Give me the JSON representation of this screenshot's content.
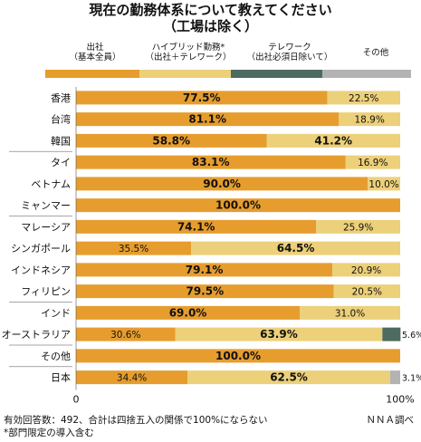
{
  "header": {
    "title": "現在の勤務体系について教えてください",
    "subtitle": "（工場は除く）"
  },
  "legend": [
    {
      "line1": "出社",
      "line2": "（基本全員）",
      "color": "#e69d2e"
    },
    {
      "line1": "ハイブリッド勤務*",
      "line2": "（出社＋テレワーク）",
      "color": "#ecd07a"
    },
    {
      "line1": "テレワーク",
      "line2": "（出社必須日除いて）",
      "color": "#4d6b60"
    },
    {
      "line1": "その他",
      "line2": "",
      "color": "#b3b3b3"
    }
  ],
  "chart_data": {
    "type": "bar",
    "orientation": "horizontal",
    "stacked": true,
    "categories": [
      "香港",
      "台湾",
      "韓国",
      "タイ",
      "ベトナム",
      "ミャンマー",
      "マレーシア",
      "シンガポール",
      "インドネシア",
      "フィリピン",
      "インド",
      "オーストラリア",
      "その他",
      "日本"
    ],
    "series": [
      {
        "name": "出社（基本全員）",
        "color": "#e69d2e",
        "values": [
          77.5,
          81.1,
          58.8,
          83.1,
          90.0,
          100.0,
          74.1,
          35.5,
          79.1,
          79.5,
          69.0,
          30.6,
          100.0,
          34.4
        ]
      },
      {
        "name": "ハイブリッド勤務*（出社＋テレワーク）",
        "color": "#ecd07a",
        "values": [
          22.5,
          18.9,
          41.2,
          16.9,
          10.0,
          0,
          25.9,
          64.5,
          20.9,
          20.5,
          31.0,
          63.9,
          0,
          62.5
        ]
      },
      {
        "name": "テレワーク（出社必須日除いて）",
        "color": "#4d6b60",
        "values": [
          0,
          0,
          0,
          0,
          0,
          0,
          0,
          0,
          0,
          0,
          0,
          5.6,
          0,
          0
        ]
      },
      {
        "name": "その他",
        "color": "#b3b3b3",
        "values": [
          0,
          0,
          0,
          0,
          0,
          0,
          0,
          0,
          0,
          0,
          0,
          0,
          0,
          3.1
        ]
      }
    ],
    "labels": [
      [
        "77.5%",
        "22.5%",
        "",
        ""
      ],
      [
        "81.1%",
        "18.9%",
        "",
        ""
      ],
      [
        "58.8%",
        "41.2%",
        "",
        ""
      ],
      [
        "83.1%",
        "16.9%",
        "",
        ""
      ],
      [
        "90.0%",
        "10.0%",
        "",
        ""
      ],
      [
        "100.0%",
        "",
        "",
        ""
      ],
      [
        "74.1%",
        "25.9%",
        "",
        ""
      ],
      [
        "35.5%",
        "64.5%",
        "",
        ""
      ],
      [
        "79.1%",
        "20.9%",
        "",
        ""
      ],
      [
        "79.5%",
        "20.5%",
        "",
        ""
      ],
      [
        "69.0%",
        "31.0%",
        "",
        ""
      ],
      [
        "30.6%",
        "63.9%",
        "5.6%",
        ""
      ],
      [
        "100.0%",
        "",
        "",
        ""
      ],
      [
        "34.4%",
        "62.5%",
        "",
        "3.1%"
      ]
    ],
    "xlim": [
      0,
      100
    ],
    "xtick_labels": [
      "0",
      "100%"
    ],
    "grid": false
  },
  "footnotes": {
    "note1": "有効回答数：492、合計は四捨五入の関係で100%にならない",
    "note2": "*部門限定の導入含む",
    "source": "ＮＮＡ調べ"
  }
}
